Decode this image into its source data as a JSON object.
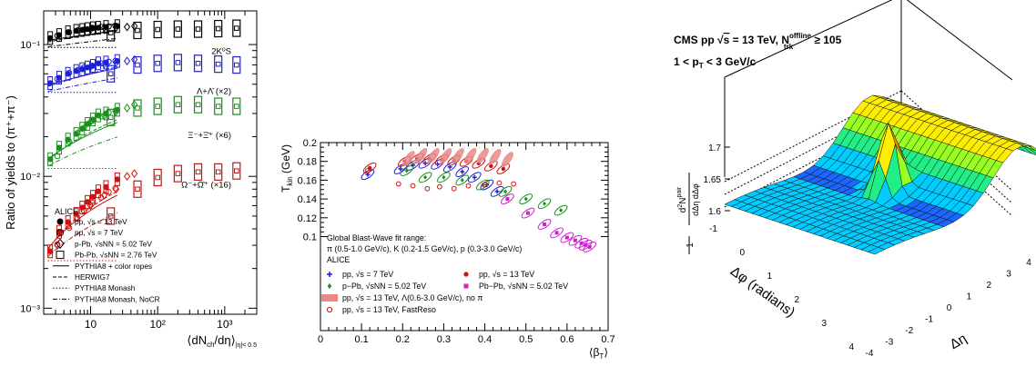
{
  "chart_data": [
    {
      "type": "scatter",
      "ylabel": "Ratio of yields to (π⁺+π⁻)",
      "xlabel": "⟨dN",
      "xlabel_sub": "ch",
      "xlabel_mid": "/dη⟩",
      "xlabel_tail": "|η|< 0.5",
      "xscale": "log",
      "yscale": "log",
      "xlim": [
        2,
        3000
      ],
      "ylim": [
        0.0009,
        0.18
      ],
      "xticks": [
        {
          "v": 10,
          "label": "10"
        },
        {
          "v": 100,
          "label": "10²"
        },
        {
          "v": 1000,
          "label": "10³"
        }
      ],
      "yticks": [
        {
          "v": 0.001,
          "label": "10⁻³"
        },
        {
          "v": 0.01,
          "label": "10⁻²"
        },
        {
          "v": 0.1,
          "label": "10⁻¹"
        }
      ],
      "species_labels": [
        {
          "text": "2K⁰S",
          "y": 0.085,
          "color": "#000000"
        },
        {
          "text": "Λ+Λ̄ (×2)",
          "y": 0.042,
          "color": "#1f1fd6"
        },
        {
          "text": "Ξ⁻+Ξ̄⁺ (×6)",
          "y": 0.0195,
          "color": "#1a8f1a"
        },
        {
          "text": "Ω⁻+Ω̄⁺ (×16)",
          "y": 0.0082,
          "color": "#cc1111"
        }
      ],
      "legend_title": "ALICE",
      "legend": [
        {
          "label": "pp, √s = 13 TeV",
          "marker": "filled-circle"
        },
        {
          "label": "pp, √s = 7 TeV",
          "marker": "open-circle"
        },
        {
          "label": "p-Pb, √sNN = 5.02 TeV",
          "marker": "open-diamond"
        },
        {
          "label": "Pb-Pb, √sNN = 2.76 TeV",
          "marker": "open-square"
        },
        {
          "label": "PYTHIA8 + color ropes",
          "line": "solid"
        },
        {
          "label": "HERWIG7",
          "line": "dashed"
        },
        {
          "label": "PYTHIA8 Monash",
          "line": "dotted"
        },
        {
          "label": "PYTHIA8 Monash, NoCR",
          "line": "dashdot"
        }
      ],
      "series": [
        {
          "name": "2K⁰S",
          "color": "#000000",
          "pp13": [
            [
              2.5,
              0.112
            ],
            [
              3.4,
              0.118
            ],
            [
              4.6,
              0.124
            ],
            [
              6.1,
              0.127
            ],
            [
              7.5,
              0.129
            ],
            [
              9.0,
              0.131
            ],
            [
              10.8,
              0.133
            ],
            [
              13.0,
              0.134
            ],
            [
              17.0,
              0.136
            ],
            [
              25.0,
              0.138
            ]
          ],
          "pp7": [
            [
              3.0,
              0.115
            ],
            [
              4.5,
              0.122
            ],
            [
              6.0,
              0.126
            ],
            [
              7.5,
              0.128
            ],
            [
              10.0,
              0.132
            ],
            [
              13.5,
              0.134
            ],
            [
              17.5,
              0.135
            ],
            [
              22.0,
              0.137
            ]
          ],
          "pPb": [
            [
              10.0,
              0.13
            ],
            [
              16.0,
              0.134
            ],
            [
              24.0,
              0.135
            ],
            [
              35.0,
              0.136
            ],
            [
              45.0,
              0.138
            ]
          ],
          "PbPb": [
            [
              20.0,
              0.123
            ],
            [
              50.0,
              0.128
            ],
            [
              100.0,
              0.13
            ],
            [
              200.0,
              0.131
            ],
            [
              400.0,
              0.131
            ],
            [
              800.0,
              0.132
            ],
            [
              1500.0,
              0.133
            ]
          ]
        },
        {
          "name": "Λ+Λ̄ (×2)",
          "color": "#1f1fd6",
          "pp13": [
            [
              2.5,
              0.051
            ],
            [
              3.4,
              0.056
            ],
            [
              4.6,
              0.06
            ],
            [
              6.1,
              0.063
            ],
            [
              7.5,
              0.065
            ],
            [
              9.0,
              0.067
            ],
            [
              10.8,
              0.069
            ],
            [
              13.0,
              0.072
            ],
            [
              17.0,
              0.073
            ],
            [
              25.0,
              0.075
            ]
          ],
          "pp7": [
            [
              3.0,
              0.054
            ],
            [
              4.5,
              0.06
            ],
            [
              6.0,
              0.063
            ],
            [
              7.5,
              0.066
            ],
            [
              10.0,
              0.068
            ],
            [
              13.5,
              0.071
            ],
            [
              17.5,
              0.073
            ],
            [
              22.0,
              0.074
            ]
          ],
          "pPb": [
            [
              10.0,
              0.068
            ],
            [
              16.0,
              0.071
            ],
            [
              24.0,
              0.073
            ],
            [
              35.0,
              0.075
            ],
            [
              45.0,
              0.077
            ]
          ],
          "PbPb": [
            [
              20.0,
              0.06
            ],
            [
              50.0,
              0.07
            ],
            [
              100.0,
              0.072
            ],
            [
              200.0,
              0.073
            ],
            [
              400.0,
              0.072
            ],
            [
              800.0,
              0.071
            ],
            [
              1500.0,
              0.07
            ]
          ]
        },
        {
          "name": "Ξ⁻+Ξ̄⁺ (×6)",
          "color": "#1a8f1a",
          "pp13": [
            [
              2.5,
              0.0135
            ],
            [
              3.4,
              0.0165
            ],
            [
              4.6,
              0.019
            ],
            [
              6.1,
              0.021
            ],
            [
              7.5,
              0.023
            ],
            [
              9.0,
              0.025
            ],
            [
              10.8,
              0.027
            ],
            [
              13.0,
              0.029
            ],
            [
              17.0,
              0.03
            ],
            [
              25.0,
              0.032
            ]
          ],
          "pp7": [
            [
              3.0,
              0.014
            ],
            [
              4.5,
              0.018
            ],
            [
              6.0,
              0.021
            ],
            [
              7.5,
              0.023
            ],
            [
              10.0,
              0.026
            ],
            [
              13.5,
              0.028
            ],
            [
              17.5,
              0.03
            ],
            [
              22.0,
              0.031
            ]
          ],
          "pPb": [
            [
              10.0,
              0.026
            ],
            [
              16.0,
              0.029
            ],
            [
              24.0,
              0.031
            ],
            [
              35.0,
              0.033
            ],
            [
              45.0,
              0.035
            ]
          ],
          "PbPb": [
            [
              20.0,
              0.028
            ],
            [
              50.0,
              0.033
            ],
            [
              100.0,
              0.034
            ],
            [
              200.0,
              0.035
            ],
            [
              400.0,
              0.035
            ],
            [
              800.0,
              0.034
            ],
            [
              1500.0,
              0.034
            ]
          ]
        },
        {
          "name": "Ω⁻+Ω̄⁺ (×16)",
          "color": "#cc1111",
          "pp13": [
            [
              2.5,
              0.0027
            ],
            [
              3.4,
              0.0038
            ],
            [
              4.6,
              0.0045
            ],
            [
              6.1,
              0.0052
            ],
            [
              7.5,
              0.0058
            ],
            [
              9.0,
              0.0064
            ],
            [
              10.8,
              0.007
            ],
            [
              13.0,
              0.0077
            ],
            [
              17.0,
              0.0083
            ],
            [
              25.0,
              0.0095
            ]
          ],
          "pp7": [
            [
              3.0,
              0.003
            ],
            [
              4.5,
              0.004
            ],
            [
              6.0,
              0.0047
            ],
            [
              7.5,
              0.0054
            ],
            [
              10.0,
              0.0062
            ],
            [
              13.5,
              0.0068
            ],
            [
              17.5,
              0.0075
            ],
            [
              22.0,
              0.008
            ]
          ],
          "pPb": [
            [
              3.2,
              0.003
            ],
            [
              10.0,
              0.006
            ],
            [
              16.0,
              0.0072
            ],
            [
              24.0,
              0.008
            ],
            [
              35.0,
              0.01
            ],
            [
              45.0,
              0.0105
            ]
          ],
          "PbPb": [
            [
              20.0,
              0.005
            ],
            [
              50.0,
              0.008
            ],
            [
              100.0,
              0.0098
            ],
            [
              200.0,
              0.0105
            ],
            [
              400.0,
              0.0108
            ],
            [
              800.0,
              0.0108
            ],
            [
              1500.0,
              0.011
            ]
          ]
        }
      ]
    },
    {
      "type": "scatter",
      "xlabel": "⟨β",
      "xlabel_sub": "T",
      "xlabel_tail": "⟩",
      "ylabel": "T",
      "ylabel_sub": "kin",
      "ylabel_tail": " (GeV)",
      "xlim": [
        0,
        0.7
      ],
      "ylim": [
        0,
        0.2
      ],
      "xticks": [
        0,
        0.1,
        0.2,
        0.3,
        0.4,
        0.5,
        0.6,
        0.7
      ],
      "xticklabels": [
        "0",
        "0.1",
        "0.2",
        "0.3",
        "0.4",
        "0.5",
        "0.6",
        "0.7"
      ],
      "yticks": [
        0.1,
        0.12,
        0.14,
        0.16,
        0.18,
        0.2
      ],
      "yticklabels": [
        "0.1",
        "0.12",
        "0.14",
        "0.16",
        "0.18",
        "0.2"
      ],
      "annotation_lines": [
        "Global Blast-Wave fit range:",
        "π (0.5-1.0 GeV/c), K (0.2-1.5 GeV/c), p (0.3-3.0 GeV/c)",
        "ALICE"
      ],
      "legend": [
        {
          "label": "pp, √s = 7 TeV",
          "color": "#1f1fd6",
          "marker": "plus"
        },
        {
          "label": "pp, √s = 13 TeV",
          "color": "#cc1111",
          "marker": "filled-circle"
        },
        {
          "label": "p−Pb, √sNN = 5.02 TeV",
          "color": "#1a8f1a",
          "marker": "filled-diamond"
        },
        {
          "label": "Pb−Pb, √sNN = 5.02 TeV",
          "color": "#cc22cc",
          "marker": "filled-square"
        },
        {
          "label": "pp, √s = 13 TeV, Λ(0.6-3.0 GeV/c), no π",
          "color": "#e88888",
          "marker": "band"
        },
        {
          "label": "pp, √s = 13 TeV, FastReso",
          "color": "#cc1111",
          "marker": "open-circle"
        }
      ],
      "series": [
        {
          "name": "pp, √s = 7 TeV",
          "color": "#1f1fd6",
          "points": [
            [
              0.115,
              0.166
            ],
            [
              0.195,
              0.172
            ],
            [
              0.225,
              0.176
            ],
            [
              0.255,
              0.178
            ],
            [
              0.285,
              0.177
            ],
            [
              0.315,
              0.174
            ],
            [
              0.345,
              0.169
            ],
            [
              0.375,
              0.163
            ],
            [
              0.405,
              0.155
            ],
            [
              0.43,
              0.148
            ]
          ]
        },
        {
          "name": "pp, √s = 13 TeV",
          "color": "#cc1111",
          "points": [
            [
              0.12,
              0.173
            ],
            [
              0.205,
              0.18
            ],
            [
              0.235,
              0.183
            ],
            [
              0.265,
              0.183
            ],
            [
              0.295,
              0.182
            ],
            [
              0.325,
              0.181
            ],
            [
              0.355,
              0.18
            ],
            [
              0.385,
              0.178
            ],
            [
              0.415,
              0.175
            ],
            [
              0.445,
              0.172
            ]
          ]
        },
        {
          "name": "p−Pb, √sNN = 5.02 TeV",
          "color": "#1a8f1a",
          "points": [
            [
              0.21,
              0.17
            ],
            [
              0.255,
              0.163
            ],
            [
              0.3,
              0.163
            ],
            [
              0.345,
              0.16
            ],
            [
              0.395,
              0.155
            ],
            [
              0.45,
              0.148
            ],
            [
              0.5,
              0.14
            ],
            [
              0.545,
              0.135
            ],
            [
              0.585,
              0.128
            ]
          ]
        },
        {
          "name": "Pb−Pb, √sNN = 5.02 TeV",
          "color": "#cc22cc",
          "points": [
            [
              0.455,
              0.14
            ],
            [
              0.505,
              0.125
            ],
            [
              0.545,
              0.113
            ],
            [
              0.575,
              0.104
            ],
            [
              0.6,
              0.099
            ],
            [
              0.62,
              0.096
            ],
            [
              0.635,
              0.093
            ],
            [
              0.645,
              0.091
            ],
            [
              0.655,
              0.089
            ]
          ]
        },
        {
          "name": "pp, √s = 13 TeV, Λ(0.6-3.0 GeV/c), no π",
          "color": "#e88888",
          "points": [
            [
              0.215,
              0.183
            ],
            [
              0.245,
              0.186
            ],
            [
              0.275,
              0.186
            ],
            [
              0.305,
              0.186
            ],
            [
              0.335,
              0.186
            ],
            [
              0.365,
              0.186
            ],
            [
              0.395,
              0.186
            ],
            [
              0.425,
              0.185
            ],
            [
              0.455,
              0.182
            ]
          ]
        },
        {
          "name": "pp, √s = 13 TeV, FastReso",
          "color": "#cc1111",
          "points": [
            [
              0.115,
              0.17
            ],
            [
              0.19,
              0.156
            ],
            [
              0.225,
              0.154
            ],
            [
              0.26,
              0.151
            ],
            [
              0.29,
              0.153
            ],
            [
              0.325,
              0.151
            ],
            [
              0.36,
              0.154
            ],
            [
              0.4,
              0.155
            ],
            [
              0.435,
              0.157
            ],
            [
              0.47,
              0.156
            ]
          ]
        }
      ]
    },
    {
      "type": "surface3d",
      "title_text": "CMS pp",
      "title_root": "s",
      "title_mid": " = 13 TeV, N",
      "title_sup": "offline",
      "title_sub": "trk",
      "title_tail": " ≥ 105",
      "subtitle_text": "1 < p",
      "subtitle_sub": "T",
      "subtitle_tail": " < 3 GeV/c",
      "zlabel_num_pre": "d",
      "zlabel_num_sup1": "2",
      "zlabel_num_N": "N",
      "zlabel_num_sup2": "pair",
      "zlabel_den": "dΔη dΔφ",
      "zlabel_left": "1",
      "zlabel_left_den": "N",
      "zlabel_left_den_sub": "trig",
      "zticks": [
        "1.6",
        "1.65",
        "1.7"
      ],
      "xlabel": "Δη",
      "xticks": [
        "-4",
        "-3",
        "-2",
        "-1",
        "0",
        "1",
        "2",
        "3",
        "4"
      ],
      "ylabel": "Δφ (radians)",
      "yticks": [
        "-1",
        "0",
        "1",
        "2",
        "3",
        "4"
      ],
      "colormap": [
        "#1a10a8",
        "#1a66ff",
        "#00ccff",
        "#22ee88",
        "#99ff22",
        "#ffee00",
        "#ff8800",
        "#ee1100"
      ]
    }
  ]
}
